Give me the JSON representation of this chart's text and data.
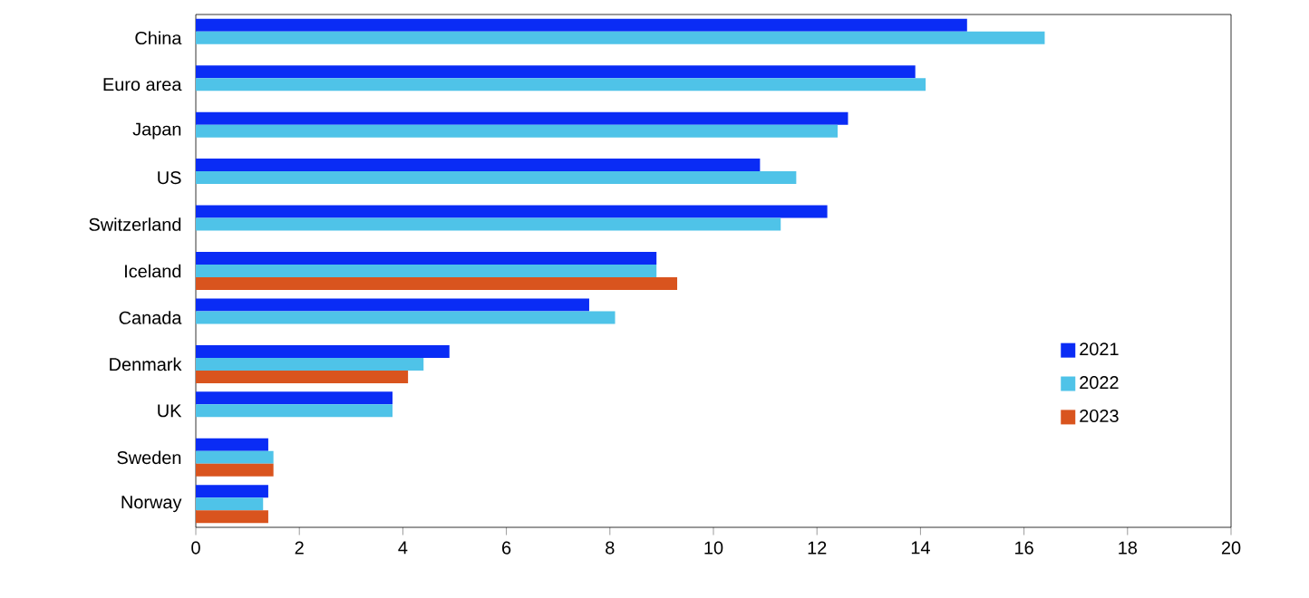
{
  "chart_data": {
    "type": "bar",
    "orientation": "horizontal",
    "categories": [
      "China",
      "Euro area",
      "Japan",
      "US",
      "Switzerland",
      "Iceland",
      "Canada",
      "Denmark",
      "UK",
      "Sweden",
      "Norway"
    ],
    "series": [
      {
        "name": "2021",
        "color": "#0a2cf5",
        "values": [
          14.9,
          13.9,
          12.6,
          10.9,
          12.2,
          8.9,
          7.6,
          4.9,
          3.8,
          1.4,
          1.4
        ]
      },
      {
        "name": "2022",
        "color": "#4fc3e8",
        "values": [
          16.4,
          14.1,
          12.4,
          11.6,
          11.3,
          8.9,
          8.1,
          4.4,
          3.8,
          1.5,
          1.3
        ]
      },
      {
        "name": "2023",
        "color": "#d9541e",
        "values": [
          null,
          null,
          null,
          null,
          null,
          9.3,
          null,
          4.1,
          null,
          1.5,
          1.4
        ]
      }
    ],
    "xlim": [
      0,
      20
    ],
    "xticks": [
      0,
      2,
      4,
      6,
      8,
      10,
      12,
      14,
      16,
      18,
      20
    ],
    "legend": "right",
    "grid": false
  }
}
